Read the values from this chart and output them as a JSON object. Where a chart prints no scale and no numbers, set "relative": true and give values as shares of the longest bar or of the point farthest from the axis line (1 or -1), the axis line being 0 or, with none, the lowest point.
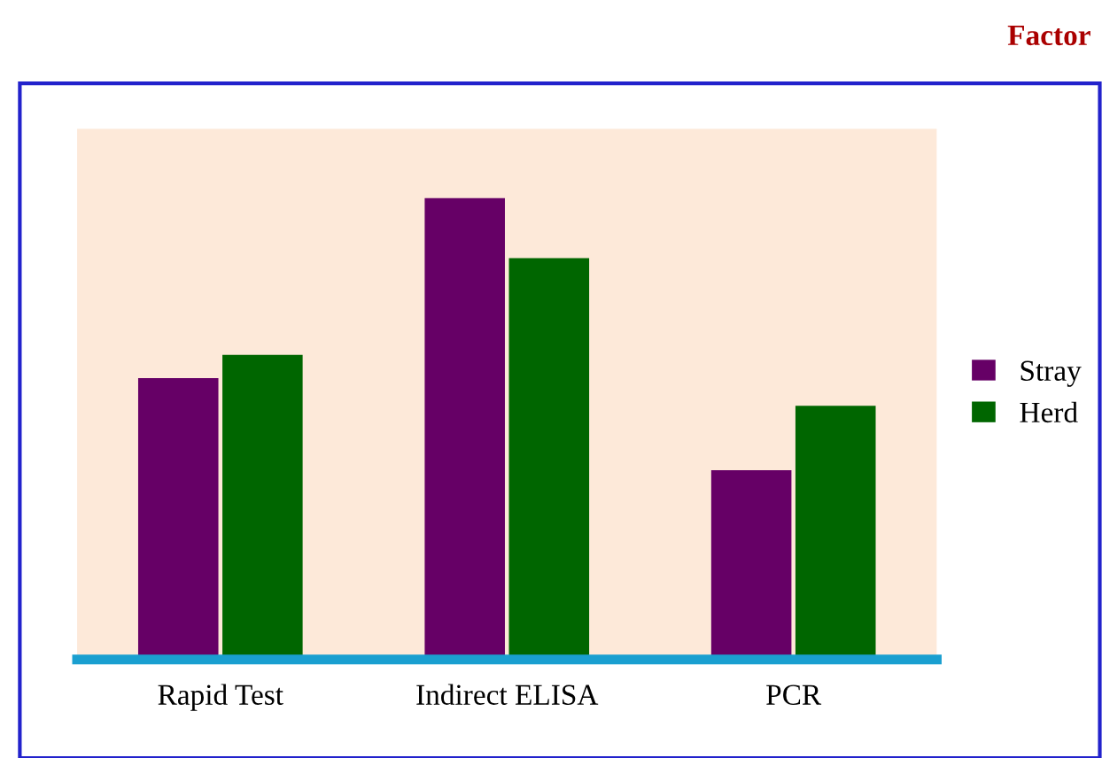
{
  "chart_data": {
    "type": "bar",
    "title": "Factor",
    "categories": [
      "Rapid Test",
      "Indirect ELISA",
      "PCR"
    ],
    "relative": true,
    "series": [
      {
        "name": "Stray",
        "color": "#660066",
        "values": [
          0.61,
          1,
          0.41
        ]
      },
      {
        "name": "Herd",
        "color": "#006600",
        "values": [
          0.66,
          0.87,
          0.55
        ]
      }
    ],
    "legend": "right"
  }
}
